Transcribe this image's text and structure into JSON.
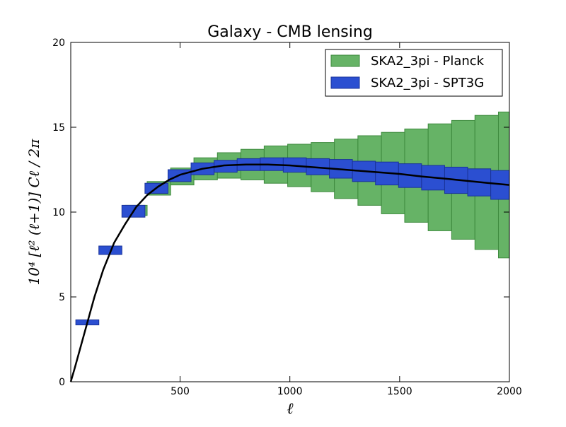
{
  "chart_data": {
    "type": "bar",
    "title": "Galaxy - CMB lensing",
    "xlabel": "ℓ",
    "ylabel": "10⁴ [ℓ² (ℓ+1)] Cℓ / 2π",
    "xlim": [
      2,
      2000
    ],
    "ylim": [
      0,
      20
    ],
    "xticks": [
      500,
      1000,
      1500,
      2000
    ],
    "yticks": [
      0,
      5,
      10,
      15,
      20
    ],
    "legend_position": "top-right",
    "grid": false,
    "series": [
      {
        "name": "SKA2_3pi - Planck",
        "color": "#66b366",
        "edge": "#3d8a3d",
        "bins": [
          {
            "x0": 250,
            "x1": 350,
            "lo": 9.8,
            "hi": 10.4
          },
          {
            "x0": 350,
            "x1": 457,
            "lo": 11.0,
            "hi": 11.8
          },
          {
            "x0": 457,
            "x1": 563,
            "lo": 11.6,
            "hi": 12.6
          },
          {
            "x0": 563,
            "x1": 670,
            "lo": 11.9,
            "hi": 13.2
          },
          {
            "x0": 670,
            "x1": 777,
            "lo": 12.0,
            "hi": 13.5
          },
          {
            "x0": 777,
            "x1": 883,
            "lo": 11.9,
            "hi": 13.7
          },
          {
            "x0": 883,
            "x1": 990,
            "lo": 11.7,
            "hi": 13.9
          },
          {
            "x0": 990,
            "x1": 1097,
            "lo": 11.5,
            "hi": 14.0
          },
          {
            "x0": 1097,
            "x1": 1203,
            "lo": 11.2,
            "hi": 14.1
          },
          {
            "x0": 1203,
            "x1": 1310,
            "lo": 10.8,
            "hi": 14.3
          },
          {
            "x0": 1310,
            "x1": 1417,
            "lo": 10.4,
            "hi": 14.5
          },
          {
            "x0": 1417,
            "x1": 1523,
            "lo": 9.9,
            "hi": 14.7
          },
          {
            "x0": 1523,
            "x1": 1630,
            "lo": 9.4,
            "hi": 14.9
          },
          {
            "x0": 1630,
            "x1": 1737,
            "lo": 8.9,
            "hi": 15.2
          },
          {
            "x0": 1737,
            "x1": 1843,
            "lo": 8.4,
            "hi": 15.4
          },
          {
            "x0": 1843,
            "x1": 1950,
            "lo": 7.8,
            "hi": 15.7
          },
          {
            "x0": 1950,
            "x1": 2000,
            "lo": 7.3,
            "hi": 15.9
          }
        ]
      },
      {
        "name": "SKA2_3pi - SPT3G",
        "color": "#2b4fd1",
        "edge": "#1a3399",
        "bins": [
          {
            "x0": 25,
            "x1": 130,
            "lo": 3.35,
            "hi": 3.65
          },
          {
            "x0": 130,
            "x1": 235,
            "lo": 7.5,
            "hi": 8.0
          },
          {
            "x0": 235,
            "x1": 340,
            "lo": 9.7,
            "hi": 10.4
          },
          {
            "x0": 340,
            "x1": 445,
            "lo": 11.1,
            "hi": 11.7
          },
          {
            "x0": 445,
            "x1": 550,
            "lo": 11.8,
            "hi": 12.5
          },
          {
            "x0": 550,
            "x1": 655,
            "lo": 12.2,
            "hi": 12.9
          },
          {
            "x0": 655,
            "x1": 760,
            "lo": 12.35,
            "hi": 13.05
          },
          {
            "x0": 760,
            "x1": 865,
            "lo": 12.45,
            "hi": 13.15
          },
          {
            "x0": 865,
            "x1": 970,
            "lo": 12.45,
            "hi": 13.2
          },
          {
            "x0": 970,
            "x1": 1075,
            "lo": 12.35,
            "hi": 13.2
          },
          {
            "x0": 1075,
            "x1": 1180,
            "lo": 12.2,
            "hi": 13.15
          },
          {
            "x0": 1180,
            "x1": 1285,
            "lo": 12.0,
            "hi": 13.1
          },
          {
            "x0": 1285,
            "x1": 1390,
            "lo": 11.8,
            "hi": 13.0
          },
          {
            "x0": 1390,
            "x1": 1495,
            "lo": 11.6,
            "hi": 12.95
          },
          {
            "x0": 1495,
            "x1": 1600,
            "lo": 11.45,
            "hi": 12.85
          },
          {
            "x0": 1600,
            "x1": 1705,
            "lo": 11.3,
            "hi": 12.75
          },
          {
            "x0": 1705,
            "x1": 1810,
            "lo": 11.1,
            "hi": 12.65
          },
          {
            "x0": 1810,
            "x1": 1915,
            "lo": 10.95,
            "hi": 12.55
          },
          {
            "x0": 1915,
            "x1": 2000,
            "lo": 10.75,
            "hi": 12.45
          }
        ]
      }
    ],
    "curve": {
      "color": "#000000",
      "x": [
        2,
        20,
        50,
        80,
        110,
        150,
        200,
        250,
        300,
        350,
        400,
        450,
        500,
        600,
        700,
        800,
        900,
        1000,
        1100,
        1200,
        1300,
        1400,
        1500,
        1600,
        1700,
        1800,
        1900,
        2000
      ],
      "y": [
        0.0,
        0.8,
        2.2,
        3.6,
        5.0,
        6.6,
        8.2,
        9.3,
        10.3,
        11.0,
        11.5,
        11.9,
        12.2,
        12.55,
        12.75,
        12.8,
        12.8,
        12.75,
        12.65,
        12.55,
        12.45,
        12.35,
        12.25,
        12.1,
        11.98,
        11.85,
        11.72,
        11.6
      ]
    }
  }
}
